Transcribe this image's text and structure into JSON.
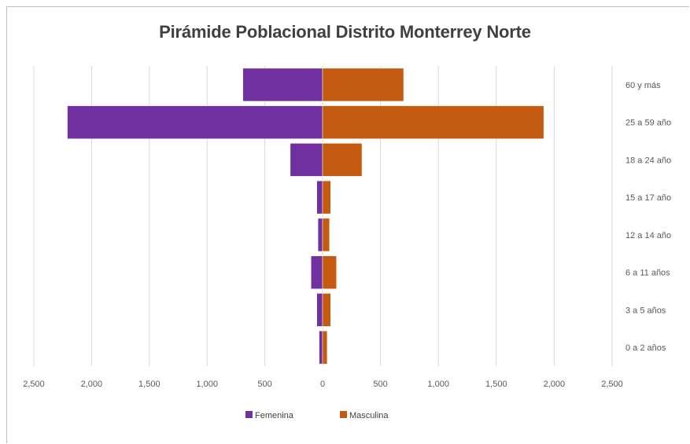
{
  "chart_data": {
    "type": "bar",
    "orientation": "horizontal-diverging",
    "title": "Pirámide Poblacional Distrito Monterrey Norte",
    "categories": [
      "60 y más",
      "25 a 59 años",
      "18 a 24 años",
      "15 a 17 años",
      "12 a 14 años",
      "6 a 11 años",
      "3 a 5 años",
      "0 a 2 años"
    ],
    "category_labels": [
      "60 y más",
      "25 a 59 año",
      "18 a 24 año",
      "15 a 17 año",
      "12 a 14 año",
      "6 a 11 años",
      "3 a 5 años",
      "0 a 2 años"
    ],
    "series": [
      {
        "name": "Femenina",
        "values": [
          690,
          2210,
          280,
          50,
          40,
          100,
          50,
          30
        ],
        "color": "#7030a0"
      },
      {
        "name": "Masculina",
        "values": [
          700,
          1910,
          340,
          70,
          60,
          120,
          70,
          40
        ],
        "color": "#c55a11"
      }
    ],
    "xlim": [
      -2500,
      2500
    ],
    "x_ticks": [
      -2500,
      -2000,
      -1500,
      -1000,
      -500,
      0,
      500,
      1000,
      1500,
      2000,
      2500
    ],
    "x_tick_labels": [
      "2,500",
      "2,000",
      "1,500",
      "1,000",
      "500",
      "0",
      "500",
      "1,000",
      "1,500",
      "2,000",
      "2,500"
    ],
    "grid": true,
    "legend": "bottom"
  }
}
